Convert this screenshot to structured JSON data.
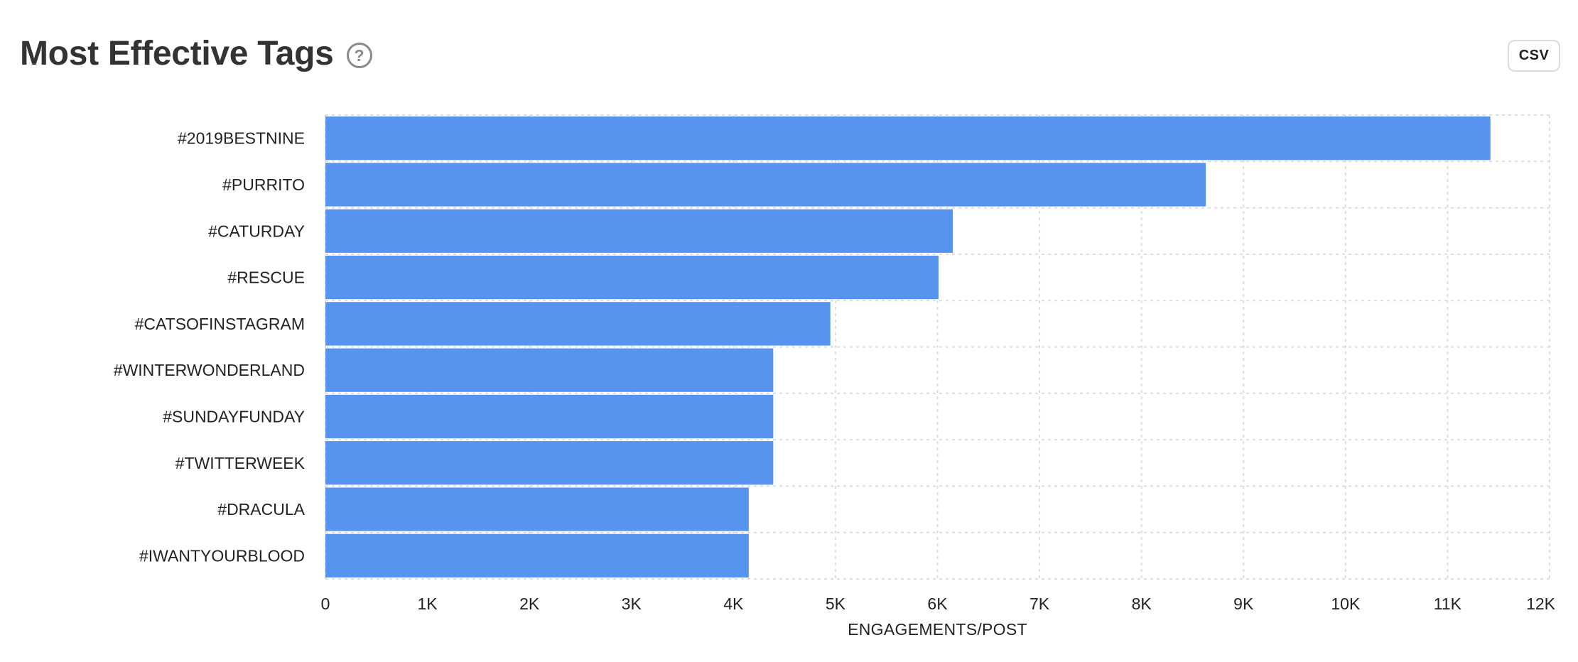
{
  "header": {
    "title": "Most Effective Tags",
    "help_icon": "question-circle-icon",
    "csv_label": "CSV"
  },
  "chart_data": {
    "type": "bar",
    "orientation": "horizontal",
    "title": "Most Effective Tags",
    "xlabel": "ENGAGEMENTS/POST",
    "ylabel": "",
    "categories": [
      "#2019BESTNINE",
      "#PURRITO",
      "#CATURDAY",
      "#RESCUE",
      "#CATSOFINSTAGRAM",
      "#WINTERWONDERLAND",
      "#SUNDAYFUNDAY",
      "#TWITTERWEEK",
      "#DRACULA",
      "#IWANTYOURBLOOD"
    ],
    "values": [
      11420,
      8630,
      6150,
      6010,
      4950,
      4390,
      4390,
      4390,
      4150,
      4150
    ],
    "xlim": [
      0,
      12000
    ],
    "xticks": [
      0,
      1000,
      2000,
      3000,
      4000,
      5000,
      6000,
      7000,
      8000,
      9000,
      10000,
      11000,
      12000
    ],
    "xtick_labels": [
      "0",
      "1K",
      "2K",
      "3K",
      "4K",
      "5K",
      "6K",
      "7K",
      "8K",
      "9K",
      "10K",
      "11K",
      "12K"
    ],
    "grid": true,
    "legend": "none",
    "bar_color": "#5694EF",
    "grid_color": "#dedede"
  }
}
